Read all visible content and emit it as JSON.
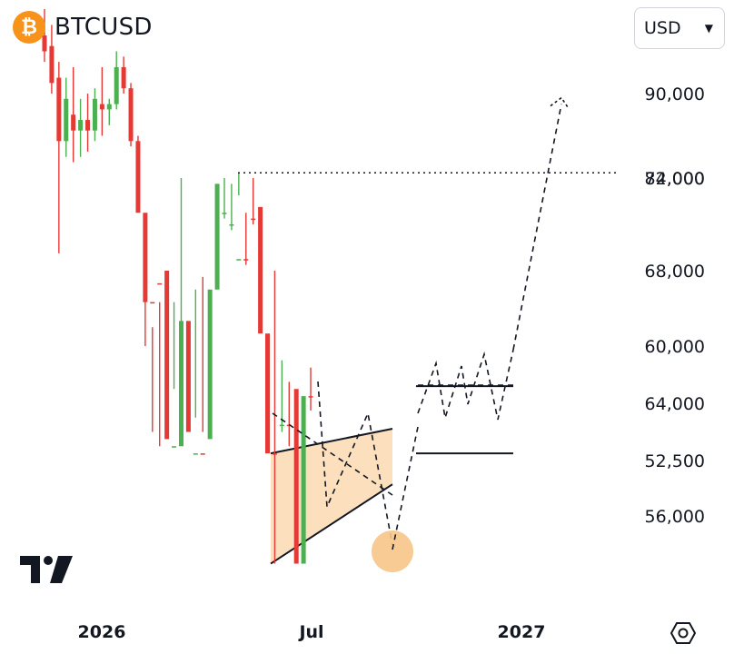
{
  "header": {
    "symbol": "BTCUSD",
    "icon": "bitcoin-icon",
    "icon_glyph": "₿"
  },
  "currency": {
    "value": "USD",
    "options": [
      "USD"
    ]
  },
  "colors": {
    "up": "#4caf50",
    "down": "#e53935",
    "zone_fill": "#fbd9b0",
    "target": "#f7c58a",
    "text": "#131722"
  },
  "chart_data": {
    "type": "candlestick",
    "yaxis": {
      "ticks": [
        90000,
        82000,
        74000,
        68000,
        64000,
        60000,
        56000,
        52500
      ],
      "tick_labels": [
        "90,000",
        "82,000",
        "74,000",
        "68,000",
        "64,000",
        "60,000",
        "56,000",
        "52,500"
      ],
      "range": [
        50000,
        97000
      ]
    },
    "xaxis": {
      "tick_labels": [
        "2026",
        "Jul",
        "2027"
      ]
    },
    "candles": [
      {
        "o": 95500,
        "h": 98000,
        "l": 93000,
        "c": 94000
      },
      {
        "o": 94500,
        "h": 96500,
        "l": 90000,
        "c": 91000
      },
      {
        "o": 91500,
        "h": 93000,
        "l": 80500,
        "c": 85500
      },
      {
        "o": 85500,
        "h": 91500,
        "l": 84000,
        "c": 89500
      },
      {
        "o": 88000,
        "h": 92500,
        "l": 83500,
        "c": 86500
      },
      {
        "o": 86500,
        "h": 89500,
        "l": 84000,
        "c": 87500
      },
      {
        "o": 87500,
        "h": 90000,
        "l": 84500,
        "c": 86500
      },
      {
        "o": 86500,
        "h": 90500,
        "l": 85500,
        "c": 89500
      },
      {
        "o": 89000,
        "h": 92500,
        "l": 86000,
        "c": 88500
      },
      {
        "o": 88500,
        "h": 89500,
        "l": 87000,
        "c": 89000
      },
      {
        "o": 89000,
        "h": 94000,
        "l": 88500,
        "c": 92500
      },
      {
        "o": 92500,
        "h": 93500,
        "l": 90000,
        "c": 90500
      },
      {
        "o": 90500,
        "h": 91000,
        "l": 85000,
        "c": 85500
      },
      {
        "o": 85500,
        "h": 86000,
        "l": 76000,
        "c": 77000
      },
      {
        "o": 77000,
        "h": 78000,
        "l": 60000,
        "c": 70500
      },
      {
        "o": 70500,
        "h": 72500,
        "l": 66000,
        "c": 69000
      },
      {
        "o": 69000,
        "h": 70500,
        "l": 67000,
        "c": 68000
      },
      {
        "o": 68000,
        "h": 69000,
        "l": 64000,
        "c": 66500
      },
      {
        "o": 66500,
        "h": 70500,
        "l": 63000,
        "c": 67000
      },
      {
        "o": 67000,
        "h": 74000,
        "l": 66000,
        "c": 72000
      },
      {
        "o": 72000,
        "h": 73000,
        "l": 65000,
        "c": 66000
      },
      {
        "o": 66000,
        "h": 69500,
        "l": 65000,
        "c": 67500
      },
      {
        "o": 67500,
        "h": 68500,
        "l": 66000,
        "c": 66500
      },
      {
        "o": 66500,
        "h": 70500,
        "l": 66000,
        "c": 69500
      },
      {
        "o": 69500,
        "h": 76000,
        "l": 68500,
        "c": 74500
      },
      {
        "o": 74500,
        "h": 77500,
        "l": 74000,
        "c": 77000
      },
      {
        "o": 77000,
        "h": 78500,
        "l": 74500,
        "c": 78000
      },
      {
        "o": 78000,
        "h": 82500,
        "l": 75500,
        "c": 81000
      },
      {
        "o": 81000,
        "h": 81500,
        "l": 77000,
        "c": 77500
      },
      {
        "o": 77500,
        "h": 78000,
        "l": 74000,
        "c": 76500
      },
      {
        "o": 76500,
        "h": 77000,
        "l": 72500,
        "c": 73000
      },
      {
        "o": 73000,
        "h": 73500,
        "l": 66000,
        "c": 67500
      },
      {
        "o": 67500,
        "h": 68000,
        "l": 59000,
        "c": 63500
      },
      {
        "o": 63500,
        "h": 66000,
        "l": 61000,
        "c": 65500
      },
      {
        "o": 65500,
        "h": 67000,
        "l": 62500,
        "c": 63000
      },
      {
        "o": 63000,
        "h": 64000,
        "l": 57500,
        "c": 59000
      },
      {
        "o": 59000,
        "h": 64000,
        "l": 57500,
        "c": 63500
      },
      {
        "o": 63500,
        "h": 64500,
        "l": 61500,
        "c": 62000
      }
    ],
    "annotations": {
      "resistance_level": 82500,
      "target": 89000,
      "range_box": {
        "high": 67500,
        "low": 62800
      },
      "channel_top_start": 67500,
      "channel_bottom_start": 59000,
      "channel_low": 54000
    }
  }
}
